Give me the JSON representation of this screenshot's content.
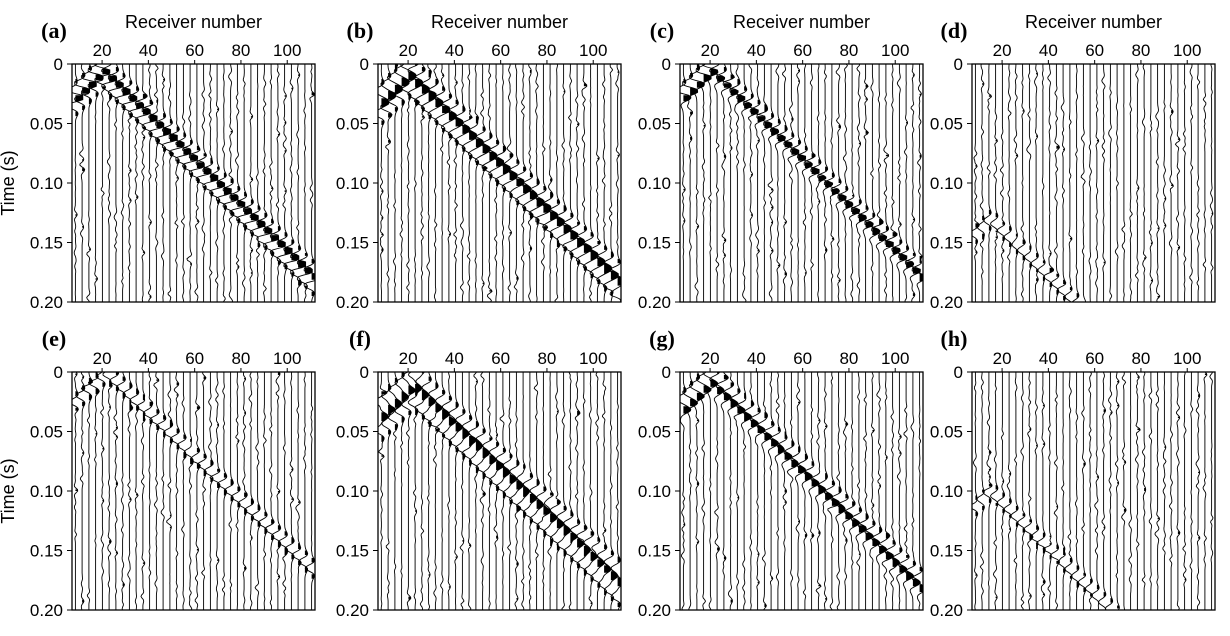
{
  "chart_data": [
    {
      "type": "seismogram",
      "panel_label": "(a)",
      "xlabel": "Receiver number",
      "ylabel": "Time (s)",
      "x_ticks": [
        20,
        40,
        60,
        80,
        100
      ],
      "y_ticks": [
        "0",
        "0.05",
        "0.10",
        "0.15",
        "0.20"
      ],
      "xlim": [
        7,
        112
      ],
      "ylim": [
        0,
        0.2
      ],
      "trace_count": 36,
      "events": [
        {
          "kind": "direct",
          "x0": 20,
          "t0": 0.0,
          "slope": 0.00191,
          "polarity": "negative",
          "offset": 0
        },
        {
          "kind": "direct",
          "x0": 20,
          "t0": 0.0,
          "slope": 0.00191,
          "polarity": "positive",
          "offset": 0.006
        },
        {
          "kind": "direct",
          "x0": 20,
          "t0": 0.0,
          "slope": 0.00191,
          "polarity": "negative",
          "offset": 0.013
        }
      ]
    },
    {
      "type": "seismogram",
      "panel_label": "(b)",
      "xlabel": "Receiver number",
      "ylabel": "",
      "x_ticks": [
        20,
        40,
        60,
        80,
        100
      ],
      "y_ticks": [
        "0",
        "0.05",
        "0.10",
        "0.15",
        "0.20"
      ],
      "xlim": [
        7,
        112
      ],
      "ylim": [
        0,
        0.2
      ],
      "trace_count": 36,
      "events": [
        {
          "kind": "direct",
          "x0": 20,
          "t0": 0.0,
          "slope": 0.00191,
          "polarity": "negative",
          "offset": 0
        },
        {
          "kind": "direct",
          "x0": 20,
          "t0": 0.0,
          "slope": 0.00191,
          "polarity": "positive",
          "offset": 0.01
        },
        {
          "kind": "direct",
          "x0": 20,
          "t0": 0.0,
          "slope": 0.00191,
          "polarity": "negative",
          "offset": 0.02
        }
      ]
    },
    {
      "type": "seismogram",
      "panel_label": "(c)",
      "xlabel": "Receiver number",
      "ylabel": "",
      "x_ticks": [
        20,
        40,
        60,
        80,
        100
      ],
      "y_ticks": [
        "0",
        "0.05",
        "0.10",
        "0.15",
        "0.20"
      ],
      "xlim": [
        7,
        112
      ],
      "ylim": [
        0,
        0.2
      ],
      "trace_count": 36,
      "events": [
        {
          "kind": "direct",
          "x0": 20,
          "t0": 0.0,
          "slope": 0.00191,
          "polarity": "negative",
          "offset": 0
        },
        {
          "kind": "direct",
          "x0": 20,
          "t0": 0.0,
          "slope": 0.00191,
          "polarity": "positive",
          "offset": 0.006
        }
      ]
    },
    {
      "type": "seismogram",
      "panel_label": "(d)",
      "xlabel": "Receiver number",
      "ylabel": "",
      "x_ticks": [
        20,
        40,
        60,
        80,
        100
      ],
      "y_ticks": [
        "0",
        "0.05",
        "0.10",
        "0.15",
        "0.20"
      ],
      "xlim": [
        7,
        112
      ],
      "ylim": [
        0,
        0.2
      ],
      "trace_count": 36,
      "events": [
        {
          "kind": "scattered",
          "x0": 15,
          "t0": 0.0,
          "slope": 0.00191,
          "polarity": "negative",
          "offset": 0.13
        }
      ]
    },
    {
      "type": "seismogram",
      "panel_label": "(e)",
      "xlabel": "",
      "ylabel": "Time (s)",
      "x_ticks": [
        20,
        40,
        60,
        80,
        100
      ],
      "y_ticks": [
        "0",
        "0.05",
        "0.10",
        "0.15",
        "0.20"
      ],
      "xlim": [
        7,
        112
      ],
      "ylim": [
        0,
        0.2
      ],
      "trace_count": 36,
      "events": [
        {
          "kind": "direct",
          "x0": 22,
          "t0": 0.0,
          "slope": 0.00186,
          "polarity": "negative",
          "offset": 0
        }
      ]
    },
    {
      "type": "seismogram",
      "panel_label": "(f)",
      "xlabel": "",
      "ylabel": "",
      "x_ticks": [
        20,
        40,
        60,
        80,
        100
      ],
      "y_ticks": [
        "0",
        "0.05",
        "0.10",
        "0.15",
        "0.20"
      ],
      "xlim": [
        7,
        112
      ],
      "ylim": [
        0,
        0.2
      ],
      "trace_count": 36,
      "events": [
        {
          "kind": "direct",
          "x0": 22,
          "t0": 0.0,
          "slope": 0.00186,
          "polarity": "negative",
          "offset": 0
        },
        {
          "kind": "direct",
          "x0": 22,
          "t0": 0.0,
          "slope": 0.00186,
          "polarity": "positive",
          "offset": 0.012
        },
        {
          "kind": "direct",
          "x0": 22,
          "t0": 0.0,
          "slope": 0.00186,
          "polarity": "negative",
          "offset": 0.024
        }
      ]
    },
    {
      "type": "seismogram",
      "panel_label": "(g)",
      "xlabel": "",
      "ylabel": "",
      "x_ticks": [
        20,
        40,
        60,
        80,
        100
      ],
      "y_ticks": [
        "0",
        "0.05",
        "0.10",
        "0.15",
        "0.20"
      ],
      "xlim": [
        7,
        112
      ],
      "ylim": [
        0,
        0.2
      ],
      "trace_count": 36,
      "events": [
        {
          "kind": "direct",
          "x0": 20,
          "t0": 0.0,
          "slope": 0.00191,
          "polarity": "negative",
          "offset": 0
        },
        {
          "kind": "direct",
          "x0": 20,
          "t0": 0.0,
          "slope": 0.00191,
          "polarity": "positive",
          "offset": 0.01
        }
      ]
    },
    {
      "type": "seismogram",
      "panel_label": "(h)",
      "xlabel": "",
      "ylabel": "",
      "x_ticks": [
        20,
        40,
        60,
        80,
        100
      ],
      "y_ticks": [
        "0",
        "0.05",
        "0.10",
        "0.15",
        "0.20"
      ],
      "xlim": [
        7,
        112
      ],
      "ylim": [
        0,
        0.2
      ],
      "trace_count": 36,
      "events": [
        {
          "kind": "scattered",
          "x0": 15,
          "t0": 0.0,
          "slope": 0.00191,
          "polarity": "negative",
          "offset": 0.1
        }
      ]
    }
  ]
}
